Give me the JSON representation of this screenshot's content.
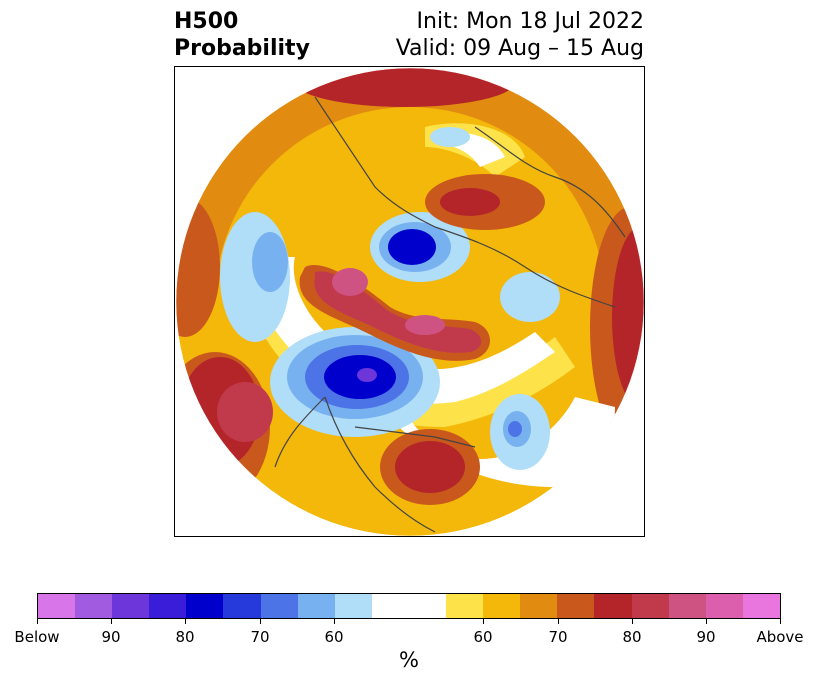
{
  "title": {
    "variable": "H500",
    "product": "Probability",
    "init": "Init: Mon 18 Jul 2022",
    "valid": "Valid: 09 Aug – 15 Aug"
  },
  "colorbar": {
    "unit": "%",
    "ticks": [
      "Below",
      "90",
      "80",
      "70",
      "60",
      "60",
      "70",
      "80",
      "90",
      "Above"
    ],
    "colors_below": [
      "#d876e9",
      "#a05be1",
      "#6c36da",
      "#3a1dd8",
      "#0000cd",
      "#2639db",
      "#4d74e6",
      "#77b1f0",
      "#b0ddf8"
    ],
    "neutral_color": "#ffffff",
    "colors_above": [
      "#fde24a",
      "#f3b80a",
      "#e18b10",
      "#c9581d",
      "#b32529",
      "#c13a4c",
      "#cf5382",
      "#dc5fad",
      "#e976de"
    ]
  },
  "map": {
    "projection": "north-polar-stereographic",
    "field": "500 hPa height probability anomaly"
  }
}
